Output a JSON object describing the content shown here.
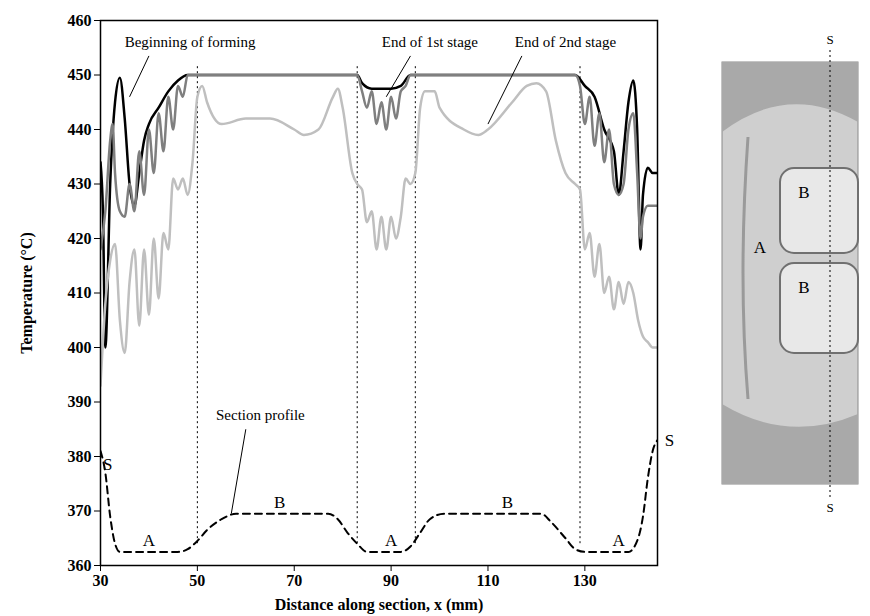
{
  "chart_data": {
    "type": "line",
    "x_label": "Distance along section, x (mm)",
    "y_label": "Temperature (°C)",
    "xlim": [
      30,
      145
    ],
    "xticks": [
      30,
      50,
      70,
      90,
      110,
      130
    ],
    "ylim": [
      360,
      460
    ],
    "yticks": [
      360,
      370,
      380,
      390,
      400,
      410,
      420,
      430,
      440,
      450,
      460
    ],
    "grid": false,
    "legend": false,
    "series": [
      {
        "name": "Beginning of forming",
        "color": "#000000",
        "line_style": "solid",
        "x": [
          30,
          30.5,
          31,
          32,
          33,
          34,
          35,
          36,
          37,
          38,
          39,
          40,
          42,
          44,
          46,
          48,
          50,
          60,
          70,
          80,
          83,
          84,
          86,
          90,
          92,
          94,
          95,
          110,
          125,
          128,
          130,
          132,
          134,
          136,
          137,
          138,
          139,
          140,
          140.8,
          141.5,
          142,
          143,
          144,
          145
        ],
        "values": [
          434,
          425,
          400,
          430,
          445,
          449.5,
          442,
          430,
          426,
          432,
          438,
          441,
          444,
          447,
          449,
          450,
          450,
          450,
          450,
          450,
          450,
          448.5,
          447.5,
          447.5,
          448,
          450,
          450,
          450,
          450,
          450,
          448,
          446,
          440,
          436,
          428,
          436,
          445,
          449,
          440,
          418,
          428,
          433,
          432,
          432
        ]
      },
      {
        "name": "End of 1st stage",
        "color": "#7f7f7f",
        "line_style": "solid",
        "x": [
          30,
          31,
          32,
          32.5,
          33,
          34,
          35,
          36,
          37,
          38,
          39,
          40,
          41,
          42,
          43,
          44,
          45,
          46,
          47,
          48,
          50,
          83,
          84,
          85,
          86,
          87,
          88,
          89,
          90,
          91,
          92,
          93,
          94,
          128,
          129,
          130,
          131,
          132,
          133,
          134,
          135,
          136,
          137,
          138,
          139,
          140,
          140.8,
          141.5,
          142,
          143,
          144,
          145
        ],
        "values": [
          418,
          425,
          438,
          441,
          432,
          425,
          424,
          430,
          425,
          436,
          428,
          440,
          432,
          443,
          436,
          446,
          440,
          448,
          446,
          450,
          450,
          450,
          447,
          444,
          447,
          441,
          445,
          440,
          446,
          442,
          447,
          448,
          450,
          450,
          448,
          441,
          446,
          437,
          443,
          434,
          440,
          430,
          428,
          430,
          440,
          443,
          432,
          420,
          424,
          426,
          426,
          426
        ]
      },
      {
        "name": "End of 2nd stage",
        "color": "#bfbfbf",
        "line_style": "solid",
        "x": [
          30,
          31,
          32,
          33,
          34,
          35,
          36,
          37,
          38,
          39,
          40,
          41,
          42,
          43,
          44,
          45,
          46,
          47,
          48,
          49,
          50,
          51,
          52,
          55,
          60,
          65,
          70,
          72,
          75,
          78,
          79,
          80,
          82,
          83,
          84,
          85,
          86,
          87,
          88,
          89,
          90,
          91,
          92,
          93,
          94,
          95,
          96,
          97,
          99,
          100,
          105,
          108,
          110,
          115,
          118,
          120,
          122,
          124,
          126,
          128,
          129,
          130,
          131,
          132,
          133,
          134,
          135,
          136,
          137,
          138,
          139,
          140,
          141,
          142,
          143,
          144,
          145
        ],
        "values": [
          393,
          408,
          416,
          419,
          405,
          399,
          412,
          418,
          404,
          418,
          406,
          420,
          409,
          421,
          418,
          431,
          429,
          431,
          428,
          434,
          446,
          448,
          445,
          441,
          442,
          442,
          440,
          439,
          440,
          446,
          447.5,
          444,
          432,
          430,
          429,
          423,
          425,
          418,
          424,
          418,
          424,
          420,
          424,
          431,
          430,
          432,
          444,
          447,
          447,
          444,
          440,
          439,
          440,
          445,
          448,
          448.5,
          447,
          438,
          432,
          430,
          429,
          418,
          421,
          413,
          419,
          410,
          413,
          407,
          412,
          408,
          412,
          410,
          405,
          402,
          401,
          400,
          400
        ]
      },
      {
        "name": "Section profile",
        "color": "#000000",
        "line_style": "dashed",
        "x": [
          30,
          31,
          32,
          33,
          34,
          46,
          48,
          50,
          52,
          55,
          58,
          77,
          79,
          81,
          83,
          85,
          92,
          94,
          96,
          98,
          101,
          121,
          123,
          126,
          128,
          130,
          139,
          141,
          142,
          143,
          144,
          145
        ],
        "values": [
          381,
          377,
          369,
          364,
          362.5,
          362.5,
          363,
          364.5,
          366.5,
          368.5,
          369.5,
          369.5,
          368.5,
          366,
          364,
          362.5,
          362.5,
          363.5,
          366,
          368.5,
          369.5,
          369.5,
          368,
          365,
          363,
          362.5,
          362.5,
          365,
          369,
          376,
          381,
          383
        ]
      }
    ],
    "dividers": {
      "x": [
        50,
        83,
        95,
        129
      ],
      "ylim": [
        364,
        452
      ],
      "line_style": "dotted"
    },
    "annotations": [
      {
        "text": "Beginning of forming",
        "x": 48.5,
        "y": 456,
        "line_from": [
          40,
          453.5
        ],
        "line_to": [
          36,
          446
        ]
      },
      {
        "text": "End of 1st stage",
        "x": 98,
        "y": 456,
        "line_from": [
          94,
          453.5
        ],
        "line_to": [
          89,
          446
        ]
      },
      {
        "text": "End of 2nd stage",
        "x": 126,
        "y": 456,
        "line_from": [
          117,
          453.5
        ],
        "line_to": [
          110,
          441
        ]
      },
      {
        "text": "Section profile",
        "x": 63,
        "y": 387.5,
        "line_from": [
          60,
          385
        ],
        "line_to": [
          57,
          369.5
        ]
      }
    ],
    "region_labels": [
      {
        "text": "A",
        "x": 40,
        "y": 364.5
      },
      {
        "text": "B",
        "x": 67,
        "y": 371.5
      },
      {
        "text": "A",
        "x": 90,
        "y": 364.5
      },
      {
        "text": "B",
        "x": 114,
        "y": 371.5
      },
      {
        "text": "A",
        "x": 137,
        "y": 364.5
      },
      {
        "text": "S",
        "x": 31.5,
        "y": 378.5
      },
      {
        "text": "S",
        "x": 147.5,
        "y": 383
      }
    ]
  },
  "photo": {
    "region_a": "A",
    "regions_b": [
      "B",
      "B"
    ],
    "section": "S"
  }
}
